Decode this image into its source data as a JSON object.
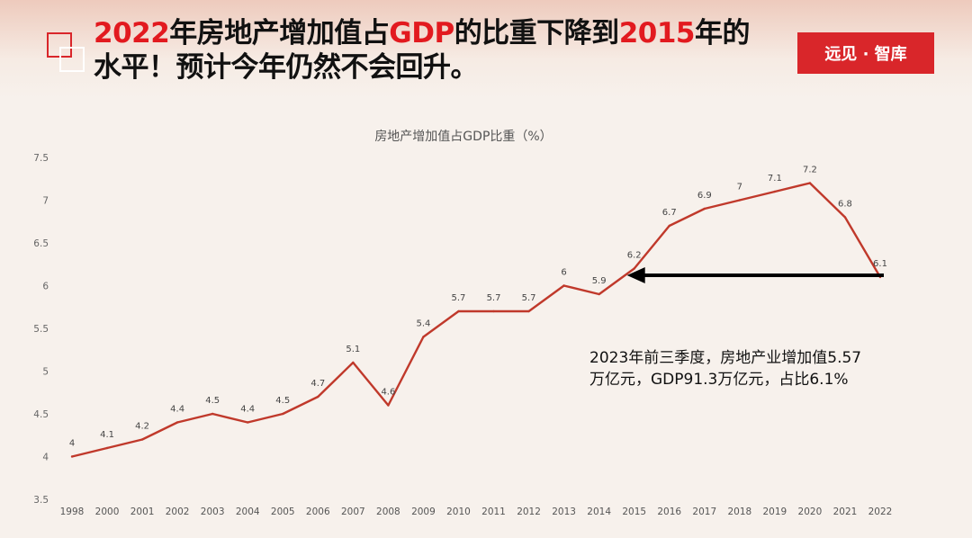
{
  "header": {
    "headline_part1": "2022",
    "headline_part2": "年房地产增加值占",
    "headline_part3": "GDP",
    "headline_part4": "的比重下降到",
    "headline_part5": "2015",
    "headline_part6": "年的",
    "headline_line2": "水平！预计今年仍然不会回升。",
    "brand": "远见 · 智库"
  },
  "annotation": {
    "line1": "2023年前三季度，房地产业增加值5.57",
    "line2": "万亿元，GDP91.3万亿元，占比6.1%"
  },
  "colors": {
    "accent": "#d9262a",
    "line": "#c0392b",
    "arrow": "#000000"
  },
  "chart_data": {
    "type": "line",
    "title": "房地产增加值占GDP比重（%）",
    "categories": [
      "1998",
      "2000",
      "2001",
      "2002",
      "2003",
      "2004",
      "2005",
      "2006",
      "2007",
      "2008",
      "2009",
      "2010",
      "2011",
      "2012",
      "2013",
      "2014",
      "2015",
      "2016",
      "2017",
      "2018",
      "2019",
      "2020",
      "2021",
      "2022"
    ],
    "values": [
      4,
      4.1,
      4.2,
      4.4,
      4.5,
      4.4,
      4.5,
      4.7,
      5.1,
      4.6,
      5.4,
      5.7,
      5.7,
      5.7,
      6,
      5.9,
      6.2,
      6.7,
      6.9,
      7,
      7.1,
      7.2,
      6.8,
      6.1
    ],
    "data_labels": [
      "4",
      "4.1",
      "4.2",
      "4.4",
      "4.5",
      "4.4",
      "4.5",
      "4.7",
      "5.1",
      "4.6",
      "5.4",
      "5.7",
      "5.7",
      "5.7",
      "6",
      "5.9",
      "6.2",
      "6.7",
      "6.9",
      "7",
      "7.1",
      "7.2",
      "6.8",
      "6.1"
    ],
    "y_ticks": [
      "3.5",
      "4",
      "4.5",
      "5",
      "5.5",
      "6",
      "6.5",
      "7",
      "7.5"
    ],
    "ylim": [
      3.5,
      7.5
    ],
    "grid": false,
    "legend": "none",
    "arrow_annotation": {
      "from_category": "2022",
      "to_category": "2015",
      "value": 6.1
    }
  }
}
